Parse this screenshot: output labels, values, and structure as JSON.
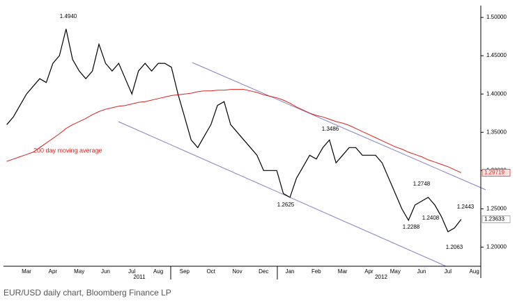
{
  "chart_data": {
    "type": "line",
    "caption": "EUR/USD daily chart, Bloomberg Finance LP",
    "categories": [
      null,
      null,
      null,
      "Mar",
      null,
      null,
      null,
      "Apr",
      null,
      null,
      null,
      "May",
      null,
      null,
      null,
      "Jun",
      null,
      null,
      null,
      "Jul",
      null,
      null,
      null,
      "Aug",
      null,
      null,
      null,
      "Sep",
      null,
      null,
      null,
      "Oct",
      null,
      null,
      null,
      "Nov",
      null,
      null,
      null,
      "Dec",
      null,
      null,
      null,
      "Jan",
      null,
      null,
      null,
      "Feb",
      null,
      null,
      null,
      "Mar",
      null,
      null,
      null,
      "Apr",
      null,
      null,
      null,
      "May",
      null,
      null,
      null,
      "Jun",
      null,
      null,
      null,
      "Jul",
      null,
      null,
      null,
      "Aug"
    ],
    "years": [
      "2011",
      "2012"
    ],
    "series": [
      {
        "name": "EUR/USD",
        "color": "#000000",
        "values": [
          1.36,
          1.37,
          1.385,
          1.4,
          1.41,
          1.42,
          1.415,
          1.44,
          1.45,
          1.485,
          1.445,
          1.43,
          1.42,
          1.43,
          1.465,
          1.44,
          1.43,
          1.44,
          1.42,
          1.4,
          1.43,
          1.44,
          1.43,
          1.44,
          1.44,
          1.435,
          1.4,
          1.37,
          1.34,
          1.33,
          1.345,
          1.36,
          1.385,
          1.39,
          1.36,
          1.35,
          1.34,
          1.33,
          1.32,
          1.3,
          1.3,
          1.3,
          1.27,
          1.265,
          1.29,
          1.305,
          1.32,
          1.315,
          1.33,
          1.34,
          1.31,
          1.32,
          1.33,
          1.33,
          1.32,
          1.32,
          1.32,
          1.31,
          1.29,
          1.27,
          1.25,
          1.235,
          1.255,
          1.26,
          1.265,
          1.255,
          1.24,
          1.22,
          1.225,
          1.23633,
          null,
          null
        ]
      },
      {
        "name": "200 day moving average",
        "color": "#e0201b",
        "values": [
          1.312,
          1.315,
          1.318,
          1.321,
          1.324,
          1.33,
          1.336,
          1.342,
          1.348,
          1.355,
          1.36,
          1.364,
          1.368,
          1.373,
          1.377,
          1.38,
          1.382,
          1.384,
          1.385,
          1.387,
          1.389,
          1.39,
          1.392,
          1.394,
          1.396,
          1.398,
          1.399,
          1.4,
          1.401,
          1.403,
          1.404,
          1.404,
          1.405,
          1.405,
          1.406,
          1.406,
          1.406,
          1.404,
          1.402,
          1.399,
          1.397,
          1.395,
          1.392,
          1.388,
          1.383,
          1.379,
          1.375,
          1.372,
          1.37,
          1.367,
          1.364,
          1.362,
          1.359,
          1.355,
          1.351,
          1.347,
          1.343,
          1.339,
          1.335,
          1.331,
          1.328,
          1.324,
          1.321,
          1.318,
          1.314,
          1.311,
          1.308,
          1.305,
          1.301,
          1.29719,
          null,
          null
        ]
      }
    ],
    "annotations": [
      "1.4940",
      "1.3486",
      "1.2625",
      "1.2748",
      "1.2288",
      "1.2408",
      "1.2443",
      "1.2063"
    ],
    "ylim": [
      1.175,
      1.5155
    ],
    "yticks": [
      {
        "value": 1.2,
        "label": "1.20000"
      },
      {
        "value": 1.25,
        "label": "1.25000"
      },
      {
        "value": 1.3,
        "label": "1.30000"
      },
      {
        "value": 1.35,
        "label": "1.35000"
      },
      {
        "value": 1.4,
        "label": "1.40000"
      },
      {
        "value": 1.45,
        "label": "1.45000"
      },
      {
        "value": 1.5,
        "label": "1.50000"
      }
    ]
  }
}
